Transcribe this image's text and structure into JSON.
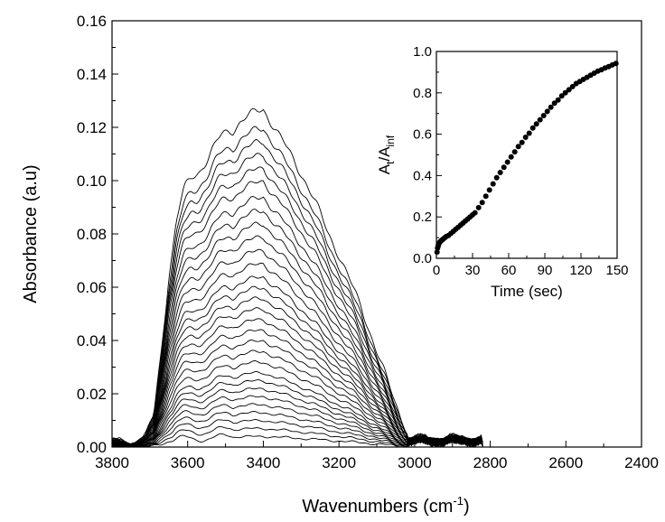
{
  "chart_data": [
    {
      "type": "line",
      "xlabel": "Wavenumbers (cm⁻¹)",
      "xlabel_parts": {
        "text": "Wavenumbers (cm",
        "sup": "-1",
        "close": ")"
      },
      "ylabel": "Absorbance (a.u)",
      "xlim": [
        3800,
        2400
      ],
      "ylim": [
        0,
        0.16
      ],
      "x_reversed": true,
      "grid": false,
      "legend": "none",
      "xticks": [
        "3800",
        "3600",
        "3400",
        "3200",
        "3000",
        "2800",
        "2600",
        "2400"
      ],
      "yticks": [
        "0.00",
        "0.02",
        "0.04",
        "0.06",
        "0.08",
        "0.10",
        "0.12",
        "0.14",
        "0.16"
      ],
      "series_count": 30,
      "envelope": {
        "x": [
          3800,
          3740,
          3710,
          3690,
          3670,
          3650,
          3630,
          3610,
          3590,
          3560,
          3530,
          3500,
          3480,
          3460,
          3440,
          3420,
          3400,
          3380,
          3350,
          3320,
          3290,
          3260,
          3230,
          3200,
          3170,
          3140,
          3110,
          3080,
          3050,
          3020,
          3000,
          2980,
          2960,
          2940,
          2920,
          2900,
          2880,
          2860,
          2840,
          2820
        ],
        "y": [
          0.002,
          0.002,
          0.004,
          0.012,
          0.036,
          0.064,
          0.083,
          0.094,
          0.101,
          0.108,
          0.112,
          0.116,
          0.119,
          0.122,
          0.124,
          0.126,
          0.127,
          0.122,
          0.115,
          0.108,
          0.1,
          0.091,
          0.081,
          0.072,
          0.062,
          0.052,
          0.04,
          0.028,
          0.016,
          0.006,
          0.003,
          0.001,
          0.002,
          0.001,
          0.002,
          0.001,
          0.002,
          0.001,
          0.002,
          0.001
        ]
      },
      "peak_max_values": [
        0.127,
        0.12,
        0.115,
        0.11,
        0.105,
        0.1,
        0.094,
        0.089,
        0.084,
        0.079,
        0.074,
        0.069,
        0.064,
        0.06,
        0.056,
        0.052,
        0.048,
        0.044,
        0.04,
        0.036,
        0.032,
        0.028,
        0.025,
        0.022,
        0.019,
        0.016,
        0.013,
        0.01,
        0.007,
        0.004
      ]
    },
    {
      "type": "scatter",
      "inset": true,
      "xlabel": "Time (sec)",
      "ylabel": "At/Ainf",
      "ylabel_parts": {
        "main1": "A",
        "sub1": "t",
        "slash": "/A",
        "sub2": "inf"
      },
      "xlim": [
        0,
        150
      ],
      "ylim": [
        0,
        1.0
      ],
      "grid": false,
      "xticks": [
        "0",
        "30",
        "60",
        "90",
        "120",
        "150"
      ],
      "yticks": [
        "0.0",
        "0.2",
        "0.4",
        "0.6",
        "0.8",
        "1.0"
      ],
      "x": [
        0.5,
        1,
        1.5,
        2,
        2.5,
        3,
        4,
        5,
        6,
        7,
        8,
        10,
        12,
        14,
        16,
        18,
        20,
        22,
        24,
        26,
        28,
        30,
        32,
        35,
        38,
        41,
        44,
        47,
        50,
        53,
        56,
        59,
        62,
        65,
        68,
        71,
        74,
        77,
        80,
        83,
        86,
        89,
        92,
        95,
        98,
        101,
        104,
        107,
        110,
        113,
        116,
        119,
        122,
        125,
        128,
        131,
        134,
        137,
        140,
        143,
        146,
        149
      ],
      "y": [
        0.03,
        0.05,
        0.06,
        0.07,
        0.075,
        0.08,
        0.085,
        0.09,
        0.095,
        0.1,
        0.105,
        0.11,
        0.12,
        0.13,
        0.14,
        0.15,
        0.16,
        0.17,
        0.18,
        0.19,
        0.2,
        0.21,
        0.22,
        0.245,
        0.27,
        0.3,
        0.33,
        0.36,
        0.39,
        0.415,
        0.44,
        0.465,
        0.49,
        0.515,
        0.54,
        0.56,
        0.585,
        0.605,
        0.63,
        0.65,
        0.67,
        0.69,
        0.71,
        0.73,
        0.75,
        0.765,
        0.785,
        0.8,
        0.815,
        0.83,
        0.845,
        0.855,
        0.865,
        0.875,
        0.885,
        0.895,
        0.905,
        0.912,
        0.92,
        0.927,
        0.935,
        0.942
      ]
    }
  ]
}
